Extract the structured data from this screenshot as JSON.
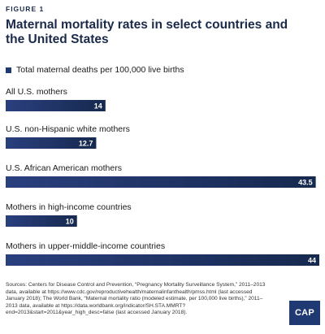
{
  "figure_label": "FIGURE 1",
  "title": "Maternal mortality rates in select countries and the United States",
  "legend": {
    "label": "Total maternal deaths per 100,000 live births",
    "color": "#1f3a73"
  },
  "chart_data": {
    "type": "bar",
    "orientation": "horizontal",
    "categories": [
      "All U.S. mothers",
      "U.S. non-Hispanic white mothers",
      "U.S. African American mothers",
      "Mothers in high-income countries",
      "Mothers in upper-middle-income countries"
    ],
    "values": [
      14,
      12.7,
      43.5,
      10,
      44
    ],
    "value_labels": [
      "14",
      "12.7",
      "43.5",
      "10",
      "44"
    ],
    "series_name": "Total maternal deaths per 100,000 live births",
    "xlim": [
      0,
      44
    ],
    "grid": false,
    "legend_position": "top-left",
    "colors": {
      "bar_start": "#2a3f7e",
      "bar_end": "#16294f"
    }
  },
  "sources": "Sources: Centers for Disease Control and Prevention, “Pregnancy Mortality Surveillance System,” 2011–2013 data, available at https://www.cdc.gov/reproductivehealth/maternalinfanthealth/pmss.html (last accessed January 2018); The World Bank, “Maternal mortality ratio (modeled estimate, per 100,000 live births),” 2011–2013 data, available at https://data.worldbank.org/indicator/SH.STA.MMRT?end=2013&start=2011&year_high_desc=false (last accessed January 2018).",
  "logo": "CAP"
}
